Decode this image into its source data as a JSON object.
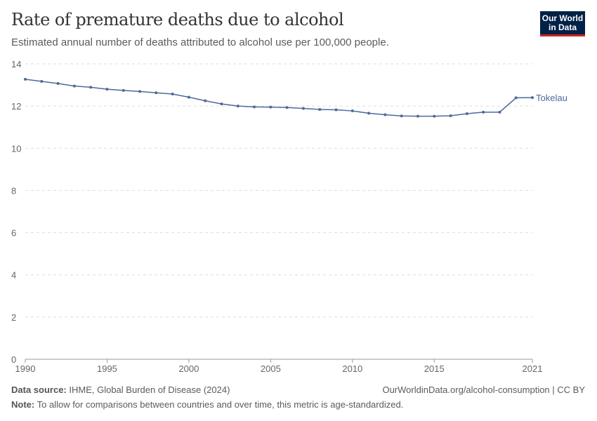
{
  "header": {
    "title": "Rate of premature deaths due to alcohol",
    "subtitle": "Estimated annual number of deaths attributed to alcohol use per 100,000 people.",
    "logo": "Our World in Data"
  },
  "footer": {
    "source_label": "Data source:",
    "source": "IHME, Global Burden of Disease (2024)",
    "url": "OurWorldinData.org/alcohol-consumption | CC BY",
    "note_label": "Note:",
    "note": "To allow for comparisons between countries and over time, this metric is age-standardized."
  },
  "chart_data": {
    "type": "line",
    "xlim": [
      1990,
      2021
    ],
    "ylim": [
      0,
      14
    ],
    "grid": "horizontal dashed",
    "xticks": [
      "1990",
      "1995",
      "2000",
      "2005",
      "2010",
      "2015",
      "2021"
    ],
    "yticks": [
      "0",
      "2",
      "4",
      "6",
      "8",
      "10",
      "12",
      "14"
    ],
    "series": [
      {
        "name": "Tokelau",
        "color": "#4c6a9c",
        "x": [
          1990,
          1991,
          1992,
          1993,
          1994,
          1995,
          1996,
          1997,
          1998,
          1999,
          2000,
          2001,
          2002,
          2003,
          2004,
          2005,
          2006,
          2007,
          2008,
          2009,
          2010,
          2011,
          2012,
          2013,
          2014,
          2015,
          2016,
          2017,
          2018,
          2019,
          2020,
          2021
        ],
        "y": [
          13.27,
          13.17,
          13.07,
          12.95,
          12.89,
          12.8,
          12.74,
          12.69,
          12.63,
          12.57,
          12.42,
          12.25,
          12.1,
          12.0,
          11.96,
          11.95,
          11.93,
          11.89,
          11.84,
          11.82,
          11.77,
          11.66,
          11.59,
          11.53,
          11.52,
          11.52,
          11.54,
          11.64,
          11.71,
          11.71,
          12.39,
          12.4
        ]
      }
    ]
  }
}
